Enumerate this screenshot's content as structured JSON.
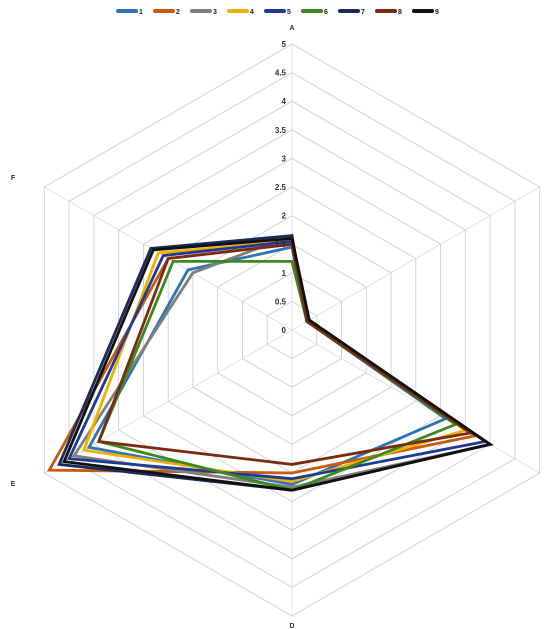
{
  "chart_data": {
    "type": "radar",
    "title": "",
    "axes": [
      "A",
      "B",
      "C",
      "D",
      "E",
      "F"
    ],
    "axis_label_visible": [
      true,
      false,
      false,
      true,
      true,
      true
    ],
    "r_range": [
      0,
      5
    ],
    "ticks": [
      "0",
      "0.5",
      "1",
      "1.5",
      "2",
      "2.5",
      "3",
      "3.5",
      "4",
      "4.5",
      "5"
    ],
    "legend_position": "top",
    "grid": true,
    "series": [
      {
        "name": "1",
        "color": "#2e75b6",
        "values": [
          1.45,
          0.3,
          3.1,
          2.7,
          4.1,
          2.1
        ]
      },
      {
        "name": "2",
        "color": "#c55a11",
        "values": [
          1.5,
          0.3,
          3.7,
          2.5,
          4.9,
          2.5
        ]
      },
      {
        "name": "3",
        "color": "#7f7f7f",
        "values": [
          1.65,
          0.3,
          4.0,
          2.75,
          4.4,
          2.0
        ]
      },
      {
        "name": "4",
        "color": "#f0b000",
        "values": [
          1.55,
          0.3,
          3.5,
          2.65,
          4.2,
          2.7
        ]
      },
      {
        "name": "5",
        "color": "#1f3a93",
        "values": [
          1.55,
          0.3,
          3.9,
          2.6,
          4.5,
          2.6
        ]
      },
      {
        "name": "6",
        "color": "#3a8a1f",
        "values": [
          1.2,
          0.3,
          3.3,
          2.8,
          3.9,
          2.4
        ]
      },
      {
        "name": "7",
        "color": "#1a2a5a",
        "values": [
          1.65,
          0.3,
          4.0,
          2.8,
          4.7,
          2.85
        ]
      },
      {
        "name": "8",
        "color": "#7b2b12",
        "values": [
          1.5,
          0.3,
          3.6,
          2.35,
          3.9,
          2.5
        ]
      },
      {
        "name": "9",
        "color": "#111111",
        "values": [
          1.6,
          0.35,
          4.0,
          2.8,
          4.6,
          2.8
        ]
      }
    ]
  }
}
